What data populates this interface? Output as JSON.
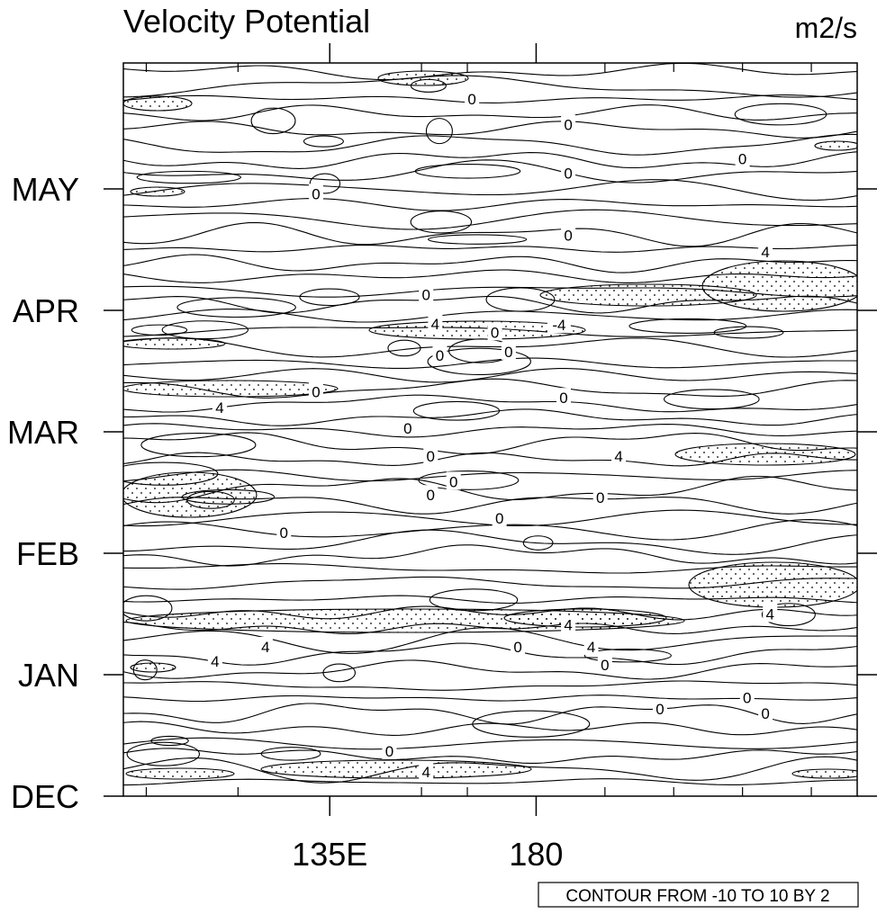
{
  "chart_data": {
    "type": "contour",
    "title": "Velocity Potential",
    "units": "m2/s",
    "x_axis": {
      "range": [
        90,
        250
      ],
      "major_ticks": [
        {
          "value": 135,
          "label": "135E"
        },
        {
          "value": 180,
          "label": "180"
        }
      ],
      "minor_ticks": [
        95,
        115,
        155,
        165,
        195,
        210,
        225,
        240
      ]
    },
    "y_axis": {
      "range": [
        "DEC",
        "end of MAY"
      ],
      "ticks": [
        {
          "value": 0,
          "label": "DEC"
        },
        {
          "value": 1,
          "label": "JAN"
        },
        {
          "value": 2,
          "label": "FEB"
        },
        {
          "value": 3,
          "label": "MAR"
        },
        {
          "value": 4,
          "label": "APR"
        },
        {
          "value": 5,
          "label": "MAY"
        }
      ]
    },
    "contour_levels": {
      "min": -10,
      "max": 10,
      "interval": 2
    },
    "stippling": "positive values",
    "contour_labels": [
      {
        "text": "0",
        "lon": 166,
        "t": 5.74
      },
      {
        "text": "0",
        "lon": 187,
        "t": 5.53
      },
      {
        "text": "0",
        "lon": 225,
        "t": 5.25
      },
      {
        "text": "0",
        "lon": 187,
        "t": 5.13
      },
      {
        "text": "0",
        "lon": 132,
        "t": 4.96
      },
      {
        "text": "0",
        "lon": 187,
        "t": 4.62
      },
      {
        "text": "0",
        "lon": 156,
        "t": 4.13
      },
      {
        "text": "4",
        "lon": 230,
        "t": 4.48
      },
      {
        "text": "4",
        "lon": 158,
        "t": 3.89
      },
      {
        "text": "0",
        "lon": 159,
        "t": 3.63
      },
      {
        "text": "-4",
        "lon": 185,
        "t": 3.88
      },
      {
        "text": "0",
        "lon": 171,
        "t": 3.82
      },
      {
        "text": "0",
        "lon": 132,
        "t": 3.33
      },
      {
        "text": "0",
        "lon": 174,
        "t": 3.66
      },
      {
        "text": "0",
        "lon": 186,
        "t": 3.28
      },
      {
        "text": "4",
        "lon": 111,
        "t": 3.2
      },
      {
        "text": "0",
        "lon": 152,
        "t": 3.03
      },
      {
        "text": "0",
        "lon": 157,
        "t": 2.8
      },
      {
        "text": "0",
        "lon": 162,
        "t": 2.59
      },
      {
        "text": "0",
        "lon": 172,
        "t": 2.29
      },
      {
        "text": "0",
        "lon": 194,
        "t": 2.46
      },
      {
        "text": "4",
        "lon": 198,
        "t": 2.8
      },
      {
        "text": "0",
        "lon": 125,
        "t": 2.17
      },
      {
        "text": "0",
        "lon": 157,
        "t": 2.48
      },
      {
        "text": "4",
        "lon": 231,
        "t": 1.5
      },
      {
        "text": "4",
        "lon": 187,
        "t": 1.41
      },
      {
        "text": "4",
        "lon": 121,
        "t": 1.23
      },
      {
        "text": "4",
        "lon": 110,
        "t": 1.11
      },
      {
        "text": "4",
        "lon": 192,
        "t": 1.23
      },
      {
        "text": "0",
        "lon": 176,
        "t": 1.23
      },
      {
        "text": "0",
        "lon": 195,
        "t": 1.08
      },
      {
        "text": "0",
        "lon": 207,
        "t": 0.72
      },
      {
        "text": "0",
        "lon": 230,
        "t": 0.68
      },
      {
        "text": "0",
        "lon": 148,
        "t": 0.37
      },
      {
        "text": "0",
        "lon": 226,
        "t": 0.81
      },
      {
        "text": "4",
        "lon": 156,
        "t": 0.2
      }
    ]
  },
  "contour_note": "CONTOUR FROM -10 TO 10 BY 2"
}
